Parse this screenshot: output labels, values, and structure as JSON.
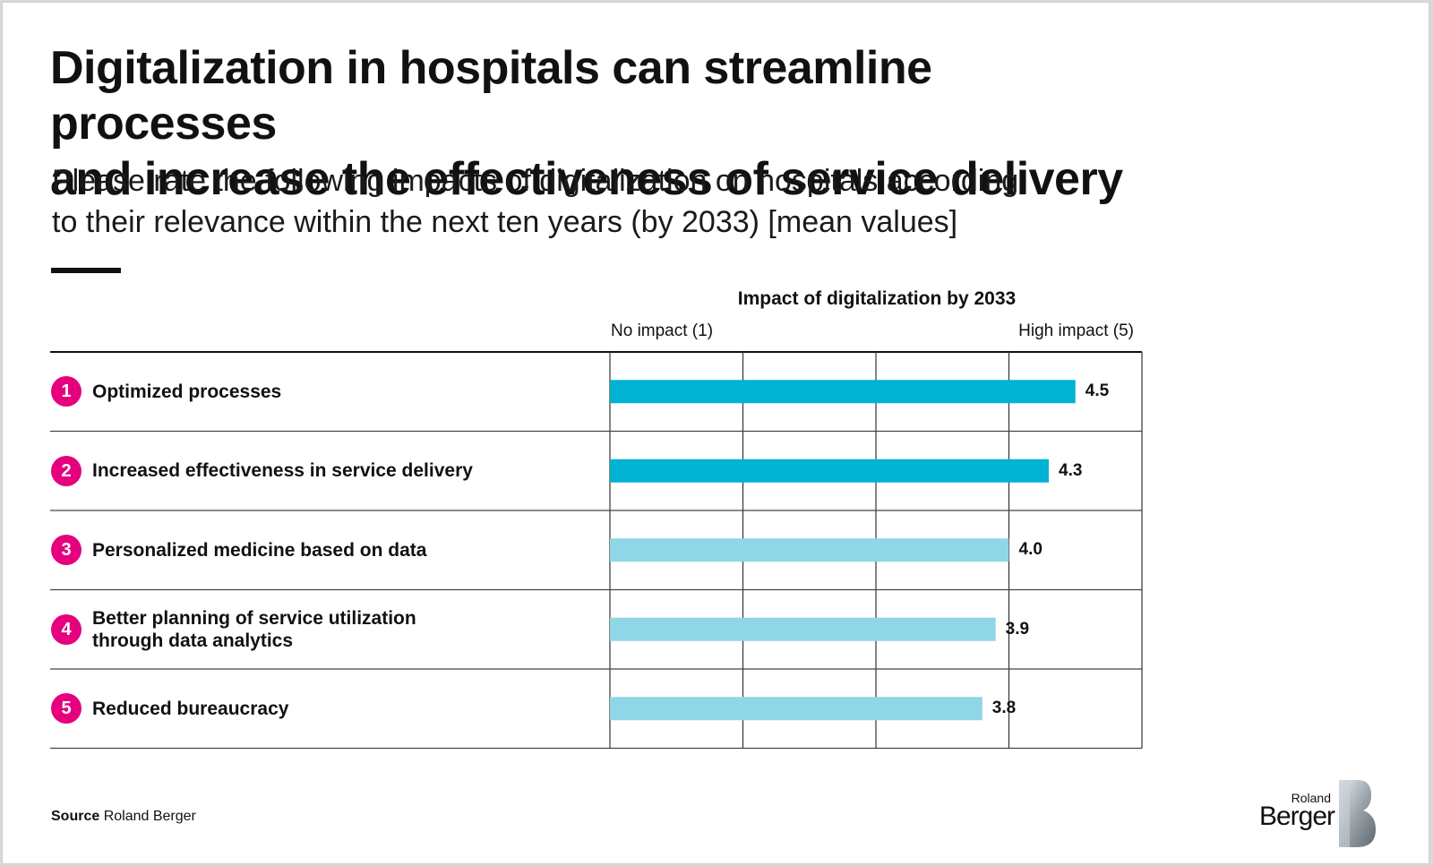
{
  "header": {
    "title_line1": "Digitalization in hospitals can streamline processes",
    "title_line2": "and increase the effectiveness of service delivery",
    "subtitle_line1": "Please rate the following impacts of digitalization on hospitals according",
    "subtitle_line2": "to their relevance within the next ten years (by 2033) [mean values]"
  },
  "chart_data": {
    "type": "bar",
    "orientation": "horizontal",
    "title": "Impact of digitalization by 2033",
    "scale_min_label": "No impact  (1)",
    "scale_max_label": "High impact  (5)",
    "xlim": [
      1,
      5
    ],
    "gridlines": [
      1,
      2,
      3,
      4,
      5
    ],
    "categories": [
      {
        "num": "1",
        "label": [
          "Optimized processes"
        ]
      },
      {
        "num": "2",
        "label": [
          "Increased effectiveness in service delivery"
        ]
      },
      {
        "num": "3",
        "label": [
          "Personalized medicine based on data"
        ]
      },
      {
        "num": "4",
        "label": [
          "Better planning of service utilization",
          "through data analytics"
        ]
      },
      {
        "num": "5",
        "label": [
          "Reduced bureaucracy"
        ]
      }
    ],
    "values": [
      4.5,
      4.3,
      4.0,
      3.9,
      3.8
    ],
    "value_labels": [
      "4.5",
      "4.3",
      "4.0",
      "3.9",
      "3.8"
    ],
    "bar_colors": [
      "#00b3d3",
      "#00b3d3",
      "#8fd6e6",
      "#8fd6e6",
      "#8fd6e6"
    ],
    "badge_color": "#e6007e",
    "grid": true
  },
  "footer": {
    "source_label": "Source",
    "source_text": " Roland Berger",
    "logo_line1": "Roland",
    "logo_line2": "Berger"
  }
}
